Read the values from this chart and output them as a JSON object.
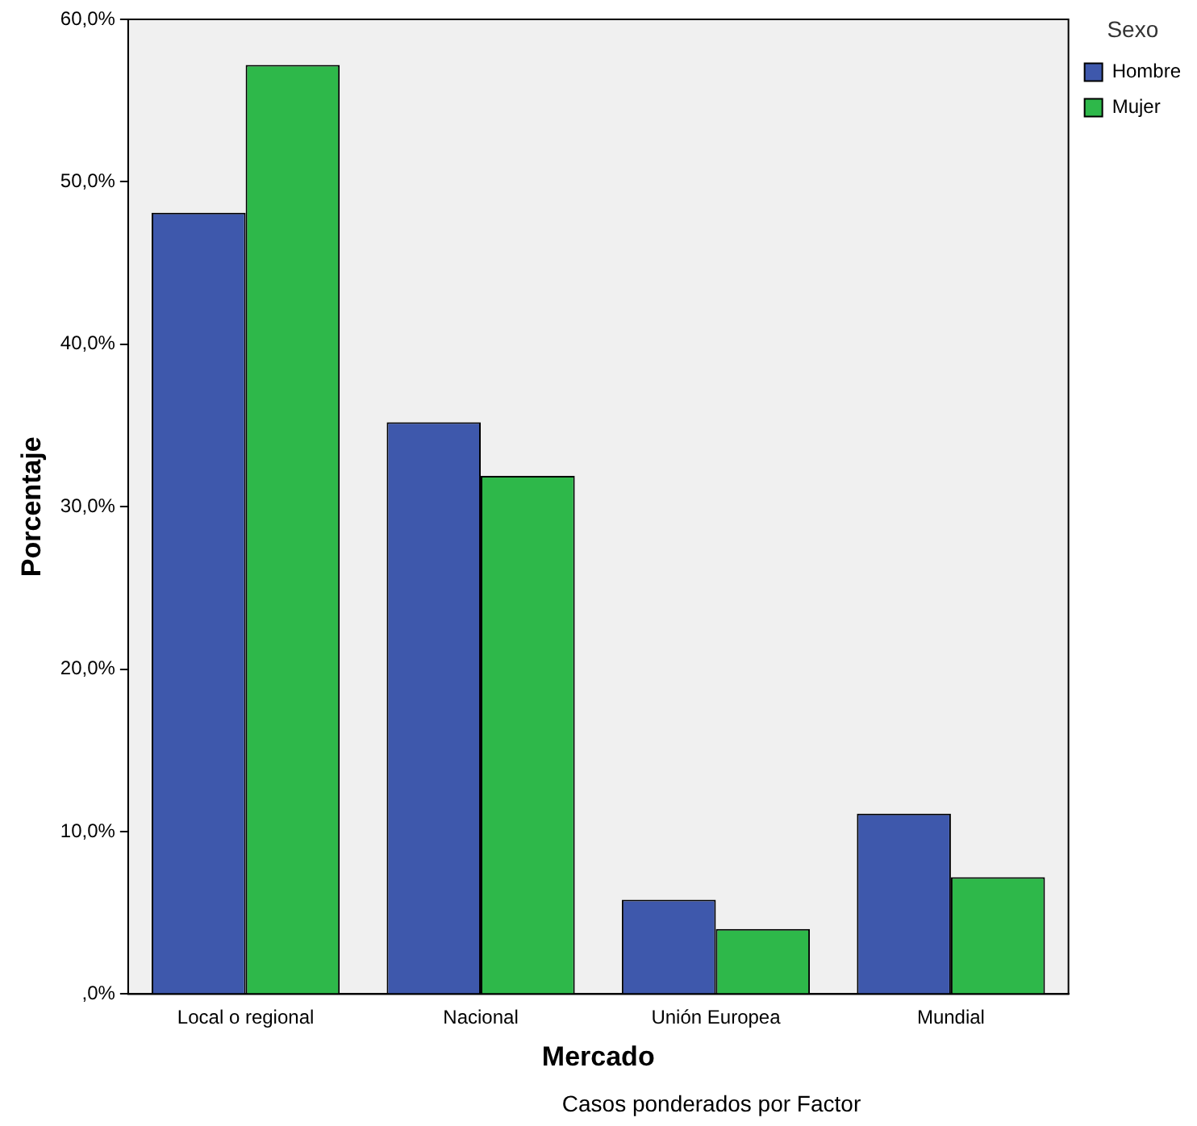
{
  "chart_data": {
    "type": "bar",
    "xlabel": "Mercado",
    "ylabel": "Porcentaje",
    "legend_title": "Sexo",
    "legend": "top right",
    "grid": false,
    "categories": [
      "Local o regional",
      "Nacional",
      "Unión Europea",
      "Mundial"
    ],
    "series": [
      {
        "name": "Hombre",
        "color": "#3e58ac",
        "values": [
          48.1,
          35.2,
          5.8,
          11.1
        ]
      },
      {
        "name": "Mujer",
        "color": "#2eb84a",
        "values": [
          57.2,
          31.9,
          4.0,
          7.2
        ]
      }
    ],
    "ylim": [
      0,
      60
    ],
    "yticks": [
      {
        "value": 0,
        "label": ",0%"
      },
      {
        "value": 10,
        "label": "10,0%"
      },
      {
        "value": 20,
        "label": "20,0%"
      },
      {
        "value": 30,
        "label": "30,0%"
      },
      {
        "value": 40,
        "label": "40,0%"
      },
      {
        "value": 50,
        "label": "50,0%"
      },
      {
        "value": 60,
        "label": "60,0%"
      }
    ],
    "annotations": [
      "Casos ponderados por Factor"
    ]
  }
}
